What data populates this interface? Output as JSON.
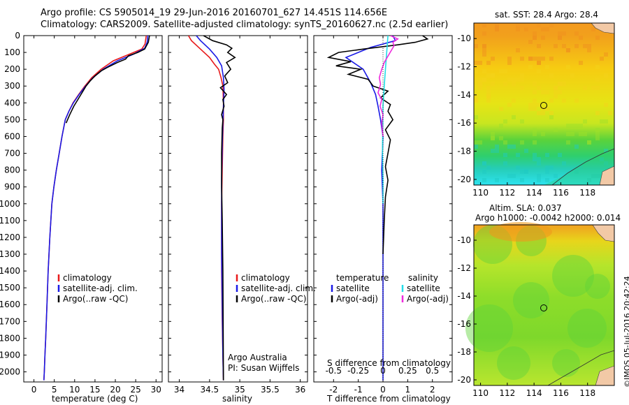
{
  "header": {
    "line1": "Argo profile: CS 5905014_19 29-Jun-2016 20160701_627 14.451S 114.656E",
    "line2": "Climatology: CARS2009. Satellite-adjusted climatology: synTS_20160627.nc (2.5d earlier)"
  },
  "colors": {
    "climatology": "#e8191a",
    "satellite": "#1a1ae6",
    "argo": "#000000",
    "sat_s": "#22dde8",
    "argo_s_adj": "#ee2bdd"
  },
  "depth_axis": {
    "ticks": [
      0,
      100,
      200,
      300,
      400,
      500,
      600,
      700,
      800,
      900,
      1000,
      1100,
      1200,
      1300,
      1400,
      1500,
      1600,
      1700,
      1800,
      1900,
      2000
    ],
    "range": [
      0,
      2060
    ]
  },
  "chart_data": [
    {
      "type": "line",
      "id": "temperature",
      "xlabel": "temperature (deg C)",
      "xticks": [
        "0",
        "5",
        "10",
        "15",
        "20",
        "25",
        "30"
      ],
      "xtick_values": [
        0,
        5,
        10,
        15,
        20,
        25,
        30
      ],
      "xlim": [
        -2.5,
        31.5
      ],
      "legend": [
        "climatology",
        "satellite-adj. clim.",
        "Argo(..raw -QC)"
      ],
      "series": [
        {
          "name": "climatology",
          "color": "#e8191a",
          "x": [
            27.6,
            27.3,
            26.5,
            23.5,
            19.5,
            16.5,
            14.2,
            12.5,
            11.0,
            9.6,
            8.6,
            7.7,
            6.9,
            6.2,
            5.5,
            4.9,
            4.4,
            3.9,
            3.5,
            3.2,
            2.9,
            2.7,
            2.55,
            2.45
          ],
          "depth": [
            0,
            50,
            80,
            110,
            150,
            200,
            250,
            300,
            350,
            400,
            450,
            500,
            600,
            700,
            800,
            900,
            1000,
            1200,
            1400,
            1600,
            1800,
            1900,
            2000,
            2050
          ]
        },
        {
          "name": "satellite-adj. clim.",
          "color": "#1a1ae6",
          "x": [
            28.0,
            27.8,
            27.2,
            24.5,
            20.5,
            17.0,
            14.5,
            12.7,
            11.1,
            9.7,
            8.6,
            7.7,
            6.9,
            6.2,
            5.5,
            4.9,
            4.4,
            3.9,
            3.5,
            3.2,
            2.9,
            2.7,
            2.55,
            2.45
          ],
          "depth": [
            0,
            40,
            75,
            110,
            150,
            200,
            250,
            300,
            350,
            400,
            450,
            500,
            600,
            700,
            800,
            900,
            1000,
            1200,
            1400,
            1600,
            1800,
            1900,
            2000,
            2050
          ]
        },
        {
          "name": "Argo",
          "color": "#000000",
          "x": [
            28.4,
            28.1,
            27.2,
            25.5,
            23.2,
            22.5,
            20.5,
            18.0,
            16.5,
            15.0,
            13.8,
            12.8,
            11.8,
            10.8,
            9.8,
            8.8,
            7.9
          ],
          "depth": [
            0,
            40,
            80,
            100,
            120,
            140,
            160,
            190,
            210,
            240,
            270,
            300,
            340,
            380,
            420,
            470,
            520
          ]
        }
      ]
    },
    {
      "type": "line",
      "id": "salinity",
      "xlabel": "salinity",
      "xticks": [
        "34",
        "34.5",
        "35",
        "35.5",
        "36"
      ],
      "xtick_values": [
        34,
        34.5,
        35,
        35.5,
        36
      ],
      "xlim": [
        33.82,
        36.12
      ],
      "legend": [
        "climatology",
        "satellite-adj. clim.",
        "Argo(..raw -QC)"
      ],
      "annotation": [
        "Argo Australia",
        "PI: Susan Wijffels"
      ],
      "series": [
        {
          "name": "climatology",
          "color": "#e8191a",
          "x": [
            34.15,
            34.2,
            34.35,
            34.5,
            34.58,
            34.65,
            34.69,
            34.72,
            34.73,
            34.73,
            34.72,
            34.71,
            34.7,
            34.7,
            34.7,
            34.71,
            34.72,
            34.73
          ],
          "depth": [
            0,
            30,
            80,
            130,
            170,
            200,
            250,
            300,
            400,
            500,
            600,
            800,
            1000,
            1200,
            1400,
            1700,
            1900,
            2050
          ]
        },
        {
          "name": "satellite-adj. clim.",
          "color": "#1a1ae6",
          "x": [
            34.28,
            34.35,
            34.5,
            34.62,
            34.7,
            34.73,
            34.74,
            34.73,
            34.72,
            34.71,
            34.7,
            34.7,
            34.7,
            34.71,
            34.72,
            34.73
          ],
          "depth": [
            0,
            30,
            80,
            130,
            180,
            250,
            320,
            420,
            520,
            650,
            850,
            1050,
            1300,
            1600,
            1900,
            2050
          ]
        },
        {
          "name": "Argo",
          "color": "#000000",
          "x": [
            34.4,
            34.55,
            34.78,
            34.87,
            34.8,
            34.92,
            34.78,
            34.85,
            34.75,
            34.8,
            34.68,
            34.78,
            34.72,
            34.74,
            34.7,
            34.72,
            34.71,
            34.7,
            34.7,
            34.71,
            34.72,
            34.73
          ],
          "depth": [
            0,
            30,
            55,
            75,
            100,
            130,
            160,
            200,
            240,
            280,
            310,
            350,
            380,
            420,
            470,
            500,
            550,
            700,
            900,
            1100,
            1400,
            2050
          ]
        }
      ]
    },
    {
      "type": "line",
      "id": "differences",
      "xlabel": "T difference from climatology",
      "xlabel2": "S difference from climatology",
      "xticks": [
        "-2",
        "-1",
        "0",
        "1",
        "2"
      ],
      "xtick_values": [
        -2,
        -1,
        0,
        1,
        2
      ],
      "sticks": [
        "-0.5",
        "-0.25",
        "0",
        "0.25",
        "0.5"
      ],
      "xlim": [
        -2.8,
        2.8
      ],
      "legend_left_title": "temperature",
      "legend_left": [
        "satellite",
        "Argo(-adj)"
      ],
      "legend_right_title": "salinity",
      "legend_right": [
        "satellite",
        "Argo(-adj)"
      ],
      "series": [
        {
          "name": "T satellite",
          "color": "#1a1ae6",
          "x": [
            0.4,
            0.5,
            -0.5,
            -1.5,
            -0.8,
            -0.5,
            -0.3,
            -0.2,
            -0.1,
            0.0,
            -0.05,
            0.0,
            0.0,
            0.0,
            0.0,
            0.0
          ],
          "depth": [
            0,
            30,
            70,
            130,
            200,
            280,
            350,
            420,
            500,
            600,
            800,
            1000,
            1300,
            1600,
            1900,
            2050
          ]
        },
        {
          "name": "T Argo(-adj)",
          "color": "#000000",
          "x": [
            1.6,
            1.8,
            1.3,
            0.6,
            -0.8,
            -1.8,
            -2.2,
            -1.3,
            -1.9,
            -0.9,
            -1.4,
            -0.6,
            -0.4,
            0.2,
            -0.1,
            0.3,
            0.2,
            0.4,
            0.1,
            0.3,
            0.2,
            0.1,
            0.2,
            0.1,
            0.05,
            0.0
          ],
          "depth": [
            0,
            20,
            40,
            55,
            80,
            100,
            130,
            155,
            180,
            200,
            230,
            260,
            300,
            330,
            370,
            410,
            450,
            500,
            560,
            620,
            700,
            780,
            860,
            960,
            1100,
            1300
          ]
        },
        {
          "name": "S satellite",
          "color": "#22dde8",
          "x": [
            0.2,
            0.15,
            0.1,
            0.05,
            0.0,
            -0.01,
            -0.02,
            0.0,
            0.0
          ],
          "depth": [
            0,
            100,
            200,
            300,
            420,
            560,
            700,
            850,
            1000
          ]
        },
        {
          "name": "S Argo(-adj)",
          "color": "#ee2bdd",
          "x": [
            0.3,
            0.6,
            0.4,
            0.45,
            0.25,
            0.05,
            -0.05,
            -0.15,
            -0.1,
            -0.2,
            -0.05,
            -0.12,
            0.0,
            -0.05,
            0.0
          ],
          "depth": [
            0,
            20,
            40,
            60,
            110,
            160,
            200,
            250,
            290,
            340,
            380,
            420,
            470,
            520,
            600
          ]
        }
      ]
    },
    {
      "type": "heatmap",
      "id": "sst_map",
      "title": "sat. SST: 28.4 Argo: 28.4",
      "xticks": [
        "110",
        "112",
        "114",
        "116",
        "118"
      ],
      "xtick_values": [
        110,
        112,
        114,
        116,
        118
      ],
      "yticks": [
        "-10",
        "-12",
        "-14",
        "-16",
        "-18",
        "-20"
      ],
      "ytick_values": [
        -10,
        -12,
        -14,
        -16,
        -18,
        -20
      ],
      "xlim": [
        109.5,
        120
      ],
      "ylim": [
        -20.4,
        -8.9
      ],
      "marker": {
        "lon": 114.656,
        "lat": -14.451
      }
    },
    {
      "type": "heatmap",
      "id": "sla_map",
      "title": "Altim. SLA: 0.037",
      "subtitle": "Argo h1000: -0.0042 h2000: 0.014",
      "xticks": [
        "110",
        "112",
        "114",
        "116",
        "118"
      ],
      "xtick_values": [
        110,
        112,
        114,
        116,
        118
      ],
      "yticks": [
        "-10",
        "-12",
        "-14",
        "-16",
        "-18",
        "-20"
      ],
      "ytick_values": [
        -10,
        -12,
        -14,
        -16,
        -18,
        -20
      ],
      "xlim": [
        109.5,
        120
      ],
      "ylim": [
        -20.4,
        -8.9
      ],
      "marker": {
        "lon": 114.656,
        "lat": -14.451
      }
    }
  ],
  "side_stamp": "©IMOS 05-Jul-2016 20:42:24"
}
